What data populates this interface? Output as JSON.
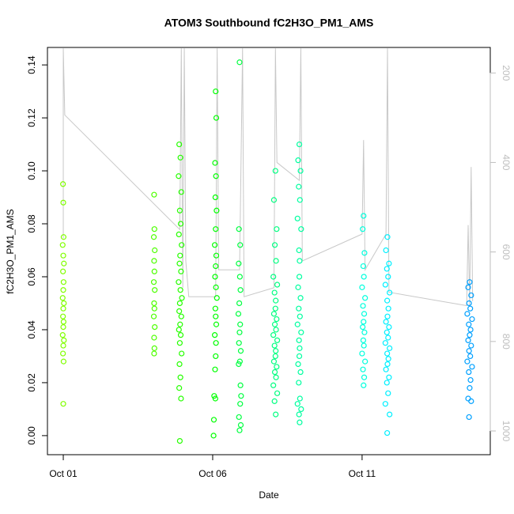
{
  "chart_data": {
    "type": "scatter",
    "title": "ATOM3 Southbound fC2H3O_PM1_AMS",
    "x_label": "Date",
    "y_label": "fC2H3O_PM1_AMS",
    "xlim": [
      0.47,
      15.29
    ],
    "xticks": [
      {
        "value": 1,
        "label": "Oct 01"
      },
      {
        "value": 6,
        "label": "Oct 06"
      },
      {
        "value": 11,
        "label": "Oct 11"
      }
    ],
    "ylim": [
      -0.0072,
      0.1466
    ],
    "yticks": [
      {
        "value": 0,
        "label": "0.00"
      },
      {
        "value": 0.02,
        "label": "0.02"
      },
      {
        "value": 0.04,
        "label": "0.04"
      },
      {
        "value": 0.06,
        "label": "0.06"
      },
      {
        "value": 0.08,
        "label": "0.08"
      },
      {
        "value": 0.1,
        "label": "0.10"
      },
      {
        "value": 0.12,
        "label": "0.12"
      },
      {
        "value": 0.14,
        "label": "0.14"
      }
    ],
    "y2lim": [
      1053,
      143
    ],
    "y2ticks": [
      200,
      400,
      600,
      800,
      1000
    ],
    "series": [
      {
        "type": "line",
        "axis": "y2",
        "color": "#c8c8c8",
        "x": [
          1.0,
          1.0,
          1.05,
          4.9,
          4.95,
          5.0,
          5.05,
          5.1,
          5.2,
          6.1,
          6.15,
          6.2,
          6.9,
          7.0,
          7.05,
          8.05,
          8.1,
          8.15,
          8.9,
          8.95,
          9.0,
          11.0,
          11.05,
          11.1,
          11.8,
          11.85,
          11.9,
          14.5,
          14.55,
          14.6,
          14.65,
          14.7
        ],
        "values": [
          570,
          145,
          294,
          550,
          145,
          680,
          145,
          620,
          700,
          700,
          145,
          640,
          640,
          145,
          700,
          680,
          145,
          400,
          440,
          145,
          620,
          560,
          350,
          640,
          560,
          145,
          690,
          720,
          540,
          720,
          410,
          710
        ]
      },
      {
        "color": "#80ff00",
        "x": [
          0.99,
          1.0,
          1.01,
          0.98,
          1.0,
          1.02,
          0.99,
          1.01,
          1.0,
          0.98,
          1.02,
          1.0,
          0.99,
          1.01,
          1.0,
          0.98,
          1.02,
          1.0,
          0.99,
          1.01,
          1.0
        ],
        "values": [
          0.095,
          0.088,
          0.075,
          0.072,
          0.068,
          0.065,
          0.062,
          0.058,
          0.055,
          0.052,
          0.05,
          0.048,
          0.045,
          0.043,
          0.041,
          0.038,
          0.036,
          0.034,
          0.031,
          0.028,
          0.012
        ]
      },
      {
        "color": "#4dff00",
        "x": [
          4.04,
          4.05,
          4.03,
          4.06,
          4.04,
          4.05,
          4.03,
          4.06,
          4.04,
          4.05,
          4.03,
          4.06,
          4.04,
          4.05,
          4.04
        ],
        "values": [
          0.091,
          0.078,
          0.075,
          0.07,
          0.066,
          0.062,
          0.058,
          0.055,
          0.05,
          0.048,
          0.045,
          0.041,
          0.037,
          0.033,
          0.031
        ]
      },
      {
        "color": "#26ff00",
        "x": [
          4.88,
          4.92,
          4.86,
          4.95,
          4.9,
          4.93,
          4.87,
          4.96,
          4.91,
          4.89,
          4.94,
          4.86,
          4.92,
          4.97,
          4.9,
          4.88,
          4.95,
          4.91,
          4.87,
          4.93,
          4.9,
          4.96,
          4.89,
          4.92,
          4.88,
          4.94,
          4.9
        ],
        "values": [
          0.11,
          0.105,
          0.098,
          0.092,
          0.085,
          0.08,
          0.076,
          0.072,
          0.068,
          0.065,
          0.062,
          0.058,
          0.055,
          0.052,
          0.05,
          0.047,
          0.045,
          0.042,
          0.04,
          0.038,
          0.035,
          0.031,
          0.027,
          0.022,
          0.018,
          0.014,
          -0.002
        ]
      },
      {
        "color": "#00ff00",
        "x": [
          6.1,
          6.12,
          6.08,
          6.11,
          6.09,
          6.13,
          6.1,
          6.07,
          6.12,
          6.1,
          6.08,
          6.11,
          6.14,
          6.09,
          6.1,
          6.12,
          6.07,
          6.11,
          6.1,
          6.08,
          6.05,
          6.09,
          6.04,
          6.03
        ],
        "values": [
          0.13,
          0.12,
          0.103,
          0.098,
          0.09,
          0.085,
          0.078,
          0.072,
          0.068,
          0.064,
          0.06,
          0.056,
          0.052,
          0.048,
          0.045,
          0.042,
          0.038,
          0.035,
          0.03,
          0.025,
          0.015,
          0.014,
          0.006,
          0.0
        ]
      },
      {
        "color": "#00ff40",
        "x": [
          6.9,
          6.88,
          6.92,
          6.87,
          6.91,
          6.93,
          6.89,
          6.86,
          6.92,
          6.9,
          6.88,
          6.94,
          6.91,
          6.87,
          6.93,
          6.95,
          6.92,
          6.88,
          6.94,
          6.9
        ],
        "values": [
          0.141,
          0.078,
          0.072,
          0.065,
          0.06,
          0.055,
          0.05,
          0.046,
          0.042,
          0.039,
          0.035,
          0.032,
          0.028,
          0.027,
          0.019,
          0.015,
          0.012,
          0.007,
          0.004,
          0.002
        ]
      },
      {
        "color": "#00ff80",
        "x": [
          8.1,
          8.05,
          8.14,
          8.08,
          8.12,
          8.03,
          8.16,
          8.07,
          8.11,
          8.1,
          8.05,
          8.14,
          8.08,
          8.12,
          8.03,
          8.16,
          8.07,
          8.11,
          8.1,
          8.05,
          8.14,
          8.08,
          8.12,
          8.03,
          8.16,
          8.07,
          8.11
        ],
        "values": [
          0.1,
          0.089,
          0.078,
          0.072,
          0.066,
          0.06,
          0.057,
          0.054,
          0.051,
          0.048,
          0.046,
          0.044,
          0.042,
          0.04,
          0.038,
          0.036,
          0.034,
          0.032,
          0.03,
          0.028,
          0.026,
          0.024,
          0.022,
          0.019,
          0.016,
          0.013,
          0.008
        ]
      },
      {
        "color": "#00ffa0",
        "x": [
          8.9,
          8.86,
          8.94,
          8.88,
          8.92,
          8.84,
          8.96,
          8.89,
          8.91,
          8.9,
          8.86,
          8.94,
          8.88,
          8.92,
          8.84,
          8.96,
          8.89,
          8.91,
          8.9,
          8.86,
          8.94,
          8.88,
          8.92,
          8.84,
          8.96,
          8.89,
          8.91
        ],
        "values": [
          0.11,
          0.104,
          0.1,
          0.094,
          0.089,
          0.082,
          0.078,
          0.07,
          0.066,
          0.06,
          0.056,
          0.052,
          0.048,
          0.045,
          0.042,
          0.039,
          0.036,
          0.033,
          0.03,
          0.027,
          0.024,
          0.02,
          0.014,
          0.012,
          0.01,
          0.008,
          0.005
        ]
      },
      {
        "color": "#00ffdd",
        "x": [
          11.05,
          11.02,
          11.08,
          11.04,
          11.06,
          11.0,
          11.1,
          11.03,
          11.07,
          11.05,
          11.02,
          11.08,
          11.04,
          11.06,
          11.0,
          11.1,
          11.03,
          11.07,
          11.05
        ],
        "values": [
          0.083,
          0.078,
          0.069,
          0.064,
          0.06,
          0.056,
          0.052,
          0.049,
          0.046,
          0.043,
          0.041,
          0.039,
          0.036,
          0.034,
          0.031,
          0.028,
          0.025,
          0.022,
          0.019
        ]
      },
      {
        "color": "#00f0ff",
        "x": [
          11.85,
          11.8,
          11.9,
          11.83,
          11.87,
          11.78,
          11.92,
          11.84,
          11.88,
          11.85,
          11.8,
          11.9,
          11.83,
          11.87,
          11.78,
          11.92,
          11.84,
          11.88,
          11.85,
          11.8,
          11.9,
          11.83,
          11.87,
          11.78,
          11.92,
          11.84
        ],
        "values": [
          0.075,
          0.07,
          0.065,
          0.063,
          0.06,
          0.057,
          0.054,
          0.051,
          0.048,
          0.045,
          0.043,
          0.041,
          0.039,
          0.037,
          0.035,
          0.033,
          0.031,
          0.029,
          0.027,
          0.025,
          0.022,
          0.02,
          0.016,
          0.012,
          0.008,
          0.001
        ]
      },
      {
        "color": "#00a0ff",
        "x": [
          14.6,
          14.55,
          14.65,
          14.58,
          14.62,
          14.52,
          14.68,
          14.57,
          14.63,
          14.6,
          14.55,
          14.65,
          14.58,
          14.62,
          14.52,
          14.68,
          14.57,
          14.63,
          14.6,
          14.55,
          14.65,
          14.58
        ],
        "values": [
          0.058,
          0.056,
          0.053,
          0.05,
          0.048,
          0.046,
          0.044,
          0.042,
          0.04,
          0.038,
          0.036,
          0.034,
          0.032,
          0.03,
          0.028,
          0.026,
          0.024,
          0.021,
          0.018,
          0.014,
          0.013,
          0.007
        ]
      }
    ]
  }
}
